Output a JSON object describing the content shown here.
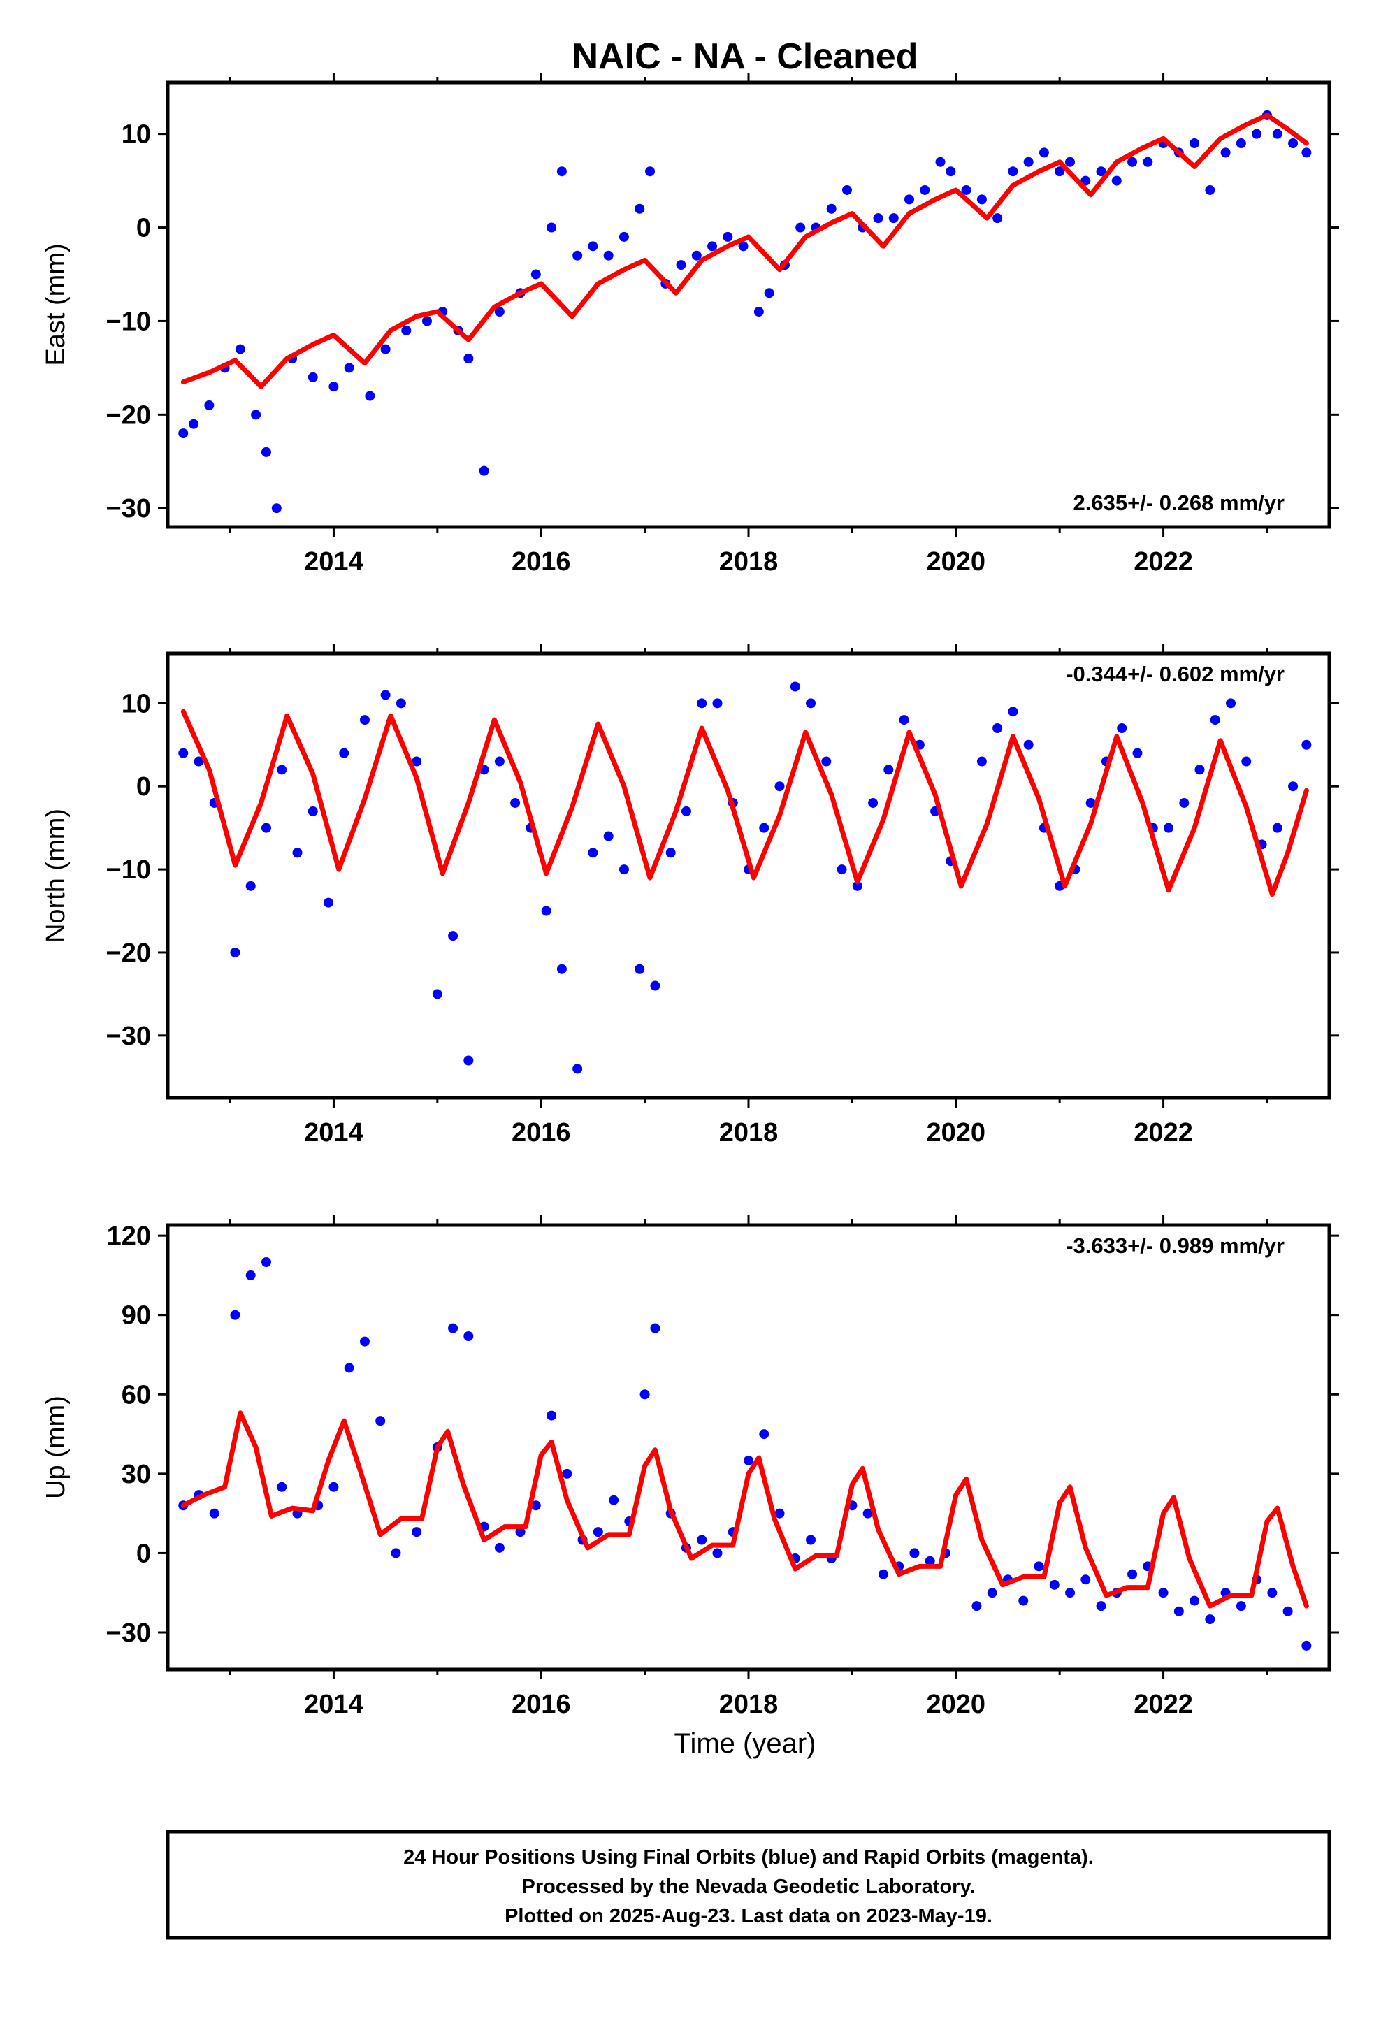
{
  "chart_data": {
    "type": "scatter",
    "title": "NAIC  - NA - Cleaned",
    "xlabel": "Time (year)",
    "xlim": [
      2012.4,
      2023.6
    ],
    "x_ticks": [
      2014,
      2016,
      2018,
      2020,
      2022
    ],
    "colors": {
      "points": "#0000ff",
      "model": "#ff0000",
      "frame": "#000000"
    },
    "panels": [
      {
        "id": "east",
        "ylabel": "East (mm)",
        "ylim": [
          -32,
          15.5
        ],
        "y_ticks": [
          10,
          0,
          -10,
          -20,
          -30
        ],
        "rate_text": "2.635+/- 0.268 mm/yr",
        "rate_position": "bottom-right",
        "observations": {
          "name": "daily positions",
          "x": [
            2012.55,
            2012.65,
            2012.8,
            2012.95,
            2013.1,
            2013.25,
            2013.35,
            2013.45,
            2013.6,
            2013.8,
            2014.0,
            2014.15,
            2014.35,
            2014.5,
            2014.7,
            2014.9,
            2015.05,
            2015.2,
            2015.3,
            2015.45,
            2015.6,
            2015.8,
            2015.95,
            2016.1,
            2016.2,
            2016.35,
            2016.5,
            2016.65,
            2016.8,
            2016.95,
            2017.05,
            2017.2,
            2017.35,
            2017.5,
            2017.65,
            2017.8,
            2017.95,
            2018.1,
            2018.2,
            2018.35,
            2018.5,
            2018.65,
            2018.8,
            2018.95,
            2019.1,
            2019.25,
            2019.4,
            2019.55,
            2019.7,
            2019.85,
            2019.95,
            2020.1,
            2020.25,
            2020.4,
            2020.55,
            2020.7,
            2020.85,
            2021.0,
            2021.1,
            2021.25,
            2021.4,
            2021.55,
            2021.7,
            2021.85,
            2022.0,
            2022.15,
            2022.3,
            2022.45,
            2022.6,
            2022.75,
            2022.9,
            2023.0,
            2023.1,
            2023.25,
            2023.38
          ],
          "y": [
            -22,
            -21,
            -19,
            -15,
            -13,
            -20,
            -24,
            -30,
            -14,
            -16,
            -17,
            -15,
            -18,
            -13,
            -11,
            -10,
            -9,
            -11,
            -14,
            -26,
            -9,
            -7,
            -5,
            0,
            6,
            -3,
            -2,
            -3,
            -1,
            2,
            6,
            -6,
            -4,
            -3,
            -2,
            -1,
            -2,
            -9,
            -7,
            -4,
            0,
            0,
            2,
            4,
            0,
            1,
            1,
            3,
            4,
            7,
            6,
            4,
            3,
            1,
            6,
            7,
            8,
            6,
            7,
            5,
            6,
            5,
            7,
            7,
            9,
            8,
            9,
            4,
            8,
            9,
            10,
            12,
            10,
            9,
            8
          ]
        },
        "model": {
          "name": "fit",
          "x": [
            2012.55,
            2012.8,
            2013.05,
            2013.3,
            2013.55,
            2013.8,
            2014.0,
            2014.3,
            2014.55,
            2014.8,
            2015.0,
            2015.3,
            2015.55,
            2015.8,
            2016.0,
            2016.3,
            2016.55,
            2016.8,
            2017.0,
            2017.3,
            2017.55,
            2017.8,
            2018.0,
            2018.3,
            2018.55,
            2018.8,
            2019.0,
            2019.3,
            2019.55,
            2019.8,
            2020.0,
            2020.3,
            2020.55,
            2020.8,
            2021.0,
            2021.3,
            2021.55,
            2021.8,
            2022.0,
            2022.3,
            2022.55,
            2022.8,
            2023.0,
            2023.2,
            2023.38
          ],
          "y": [
            -16.5,
            -15.5,
            -14.2,
            -17.0,
            -14.0,
            -12.5,
            -11.5,
            -14.5,
            -11.0,
            -9.5,
            -9.0,
            -12.0,
            -8.5,
            -7.0,
            -6.0,
            -9.5,
            -6.0,
            -4.5,
            -3.5,
            -7.0,
            -3.5,
            -2.0,
            -1.0,
            -4.5,
            -1.0,
            0.5,
            1.5,
            -2.0,
            1.5,
            3.0,
            4.0,
            1.0,
            4.5,
            6.0,
            7.0,
            3.5,
            7.0,
            8.5,
            9.5,
            6.5,
            9.5,
            11.0,
            12.0,
            10.5,
            9.0
          ]
        }
      },
      {
        "id": "north",
        "ylabel": "North (mm)",
        "ylim": [
          -37.5,
          16
        ],
        "y_ticks": [
          10,
          0,
          -10,
          -20,
          -30
        ],
        "rate_text": "-0.344+/- 0.602 mm/yr",
        "rate_position": "top-right",
        "observations": {
          "name": "daily positions",
          "x": [
            2012.55,
            2012.7,
            2012.85,
            2013.05,
            2013.2,
            2013.35,
            2013.5,
            2013.65,
            2013.8,
            2013.95,
            2014.1,
            2014.3,
            2014.5,
            2014.65,
            2014.8,
            2015.0,
            2015.15,
            2015.3,
            2015.45,
            2015.6,
            2015.75,
            2015.9,
            2016.05,
            2016.2,
            2016.35,
            2016.5,
            2016.65,
            2016.8,
            2016.95,
            2017.1,
            2017.25,
            2017.4,
            2017.55,
            2017.7,
            2017.85,
            2018.0,
            2018.15,
            2018.3,
            2018.45,
            2018.6,
            2018.75,
            2018.9,
            2019.05,
            2019.2,
            2019.35,
            2019.5,
            2019.65,
            2019.8,
            2019.95,
            2020.25,
            2020.4,
            2020.55,
            2020.7,
            2020.85,
            2021.0,
            2021.15,
            2021.3,
            2021.45,
            2021.6,
            2021.75,
            2021.9,
            2022.05,
            2022.2,
            2022.35,
            2022.5,
            2022.65,
            2022.8,
            2022.95,
            2023.1,
            2023.25,
            2023.38
          ],
          "y": [
            4,
            3,
            -2,
            -20,
            -12,
            -5,
            2,
            -8,
            -3,
            -14,
            4,
            8,
            11,
            10,
            3,
            -25,
            -18,
            -33,
            2,
            3,
            -2,
            -5,
            -15,
            -22,
            -34,
            -8,
            -6,
            -10,
            -22,
            -24,
            -8,
            -3,
            10,
            10,
            -2,
            -10,
            -5,
            0,
            12,
            10,
            3,
            -10,
            -12,
            -2,
            2,
            8,
            5,
            -3,
            -9,
            3,
            7,
            9,
            5,
            -5,
            -12,
            -10,
            -2,
            3,
            7,
            4,
            -5,
            -5,
            -2,
            2,
            8,
            10,
            3,
            -7,
            -5,
            0,
            5
          ]
        },
        "model": {
          "name": "fit",
          "x": [
            2012.55,
            2012.8,
            2013.05,
            2013.3,
            2013.55,
            2013.8,
            2014.05,
            2014.3,
            2014.55,
            2014.8,
            2015.05,
            2015.3,
            2015.55,
            2015.8,
            2016.05,
            2016.3,
            2016.55,
            2016.8,
            2017.05,
            2017.3,
            2017.55,
            2017.8,
            2018.05,
            2018.3,
            2018.55,
            2018.8,
            2019.05,
            2019.3,
            2019.55,
            2019.8,
            2020.05,
            2020.3,
            2020.55,
            2020.8,
            2021.05,
            2021.3,
            2021.55,
            2021.8,
            2022.05,
            2022.3,
            2022.55,
            2022.8,
            2023.05,
            2023.2,
            2023.38
          ],
          "y": [
            9.0,
            2.0,
            -9.5,
            -2.0,
            8.5,
            1.5,
            -10.0,
            -1.5,
            8.5,
            1.0,
            -10.5,
            -2.0,
            8.0,
            0.5,
            -10.5,
            -2.5,
            7.5,
            0.0,
            -11.0,
            -3.0,
            7.0,
            -0.5,
            -11.0,
            -3.5,
            6.5,
            -1.0,
            -11.5,
            -4.0,
            6.5,
            -1.0,
            -12.0,
            -4.5,
            6.0,
            -1.5,
            -12.0,
            -4.5,
            6.0,
            -2.0,
            -12.5,
            -5.0,
            5.5,
            -2.5,
            -13.0,
            -8.0,
            -0.5
          ]
        }
      },
      {
        "id": "up",
        "ylabel": "Up (mm)",
        "ylim": [
          -44,
          124
        ],
        "y_ticks": [
          120,
          90,
          60,
          30,
          0,
          -30
        ],
        "rate_text": "-3.633+/- 0.989 mm/yr",
        "rate_position": "top-right",
        "observations": {
          "name": "daily positions",
          "x": [
            2012.55,
            2012.7,
            2012.85,
            2013.05,
            2013.2,
            2013.35,
            2013.5,
            2013.65,
            2013.85,
            2014.0,
            2014.15,
            2014.3,
            2014.45,
            2014.6,
            2014.8,
            2015.0,
            2015.15,
            2015.3,
            2015.45,
            2015.6,
            2015.8,
            2015.95,
            2016.1,
            2016.25,
            2016.4,
            2016.55,
            2016.7,
            2016.85,
            2017.0,
            2017.1,
            2017.25,
            2017.4,
            2017.55,
            2017.7,
            2017.85,
            2018.0,
            2018.15,
            2018.3,
            2018.45,
            2018.6,
            2018.8,
            2019.0,
            2019.15,
            2019.3,
            2019.45,
            2019.6,
            2019.75,
            2019.9,
            2020.2,
            2020.35,
            2020.5,
            2020.65,
            2020.8,
            2020.95,
            2021.1,
            2021.25,
            2021.4,
            2021.55,
            2021.7,
            2021.85,
            2022.0,
            2022.15,
            2022.3,
            2022.45,
            2022.6,
            2022.75,
            2022.9,
            2023.05,
            2023.2,
            2023.38
          ],
          "y": [
            18,
            22,
            15,
            90,
            105,
            110,
            25,
            15,
            18,
            25,
            70,
            80,
            50,
            0,
            8,
            40,
            85,
            82,
            10,
            2,
            8,
            18,
            52,
            30,
            5,
            8,
            20,
            12,
            60,
            85,
            15,
            2,
            5,
            0,
            8,
            35,
            45,
            15,
            -2,
            5,
            -2,
            18,
            15,
            -8,
            -5,
            0,
            -3,
            0,
            -20,
            -15,
            -10,
            -18,
            -5,
            -12,
            -15,
            -10,
            -20,
            -15,
            -8,
            -5,
            -15,
            -22,
            -18,
            -25,
            -15,
            -20,
            -10,
            -15,
            -22,
            -35
          ]
        },
        "model": {
          "name": "fit",
          "x": [
            2012.55,
            2012.75,
            2012.95,
            2013.1,
            2013.25,
            2013.4,
            2013.6,
            2013.8,
            2013.95,
            2014.1,
            2014.25,
            2014.45,
            2014.65,
            2014.85,
            2015.0,
            2015.1,
            2015.25,
            2015.45,
            2015.65,
            2015.85,
            2016.0,
            2016.1,
            2016.25,
            2016.45,
            2016.65,
            2016.85,
            2017.0,
            2017.1,
            2017.25,
            2017.45,
            2017.65,
            2017.85,
            2018.0,
            2018.1,
            2018.25,
            2018.45,
            2018.65,
            2018.85,
            2019.0,
            2019.1,
            2019.25,
            2019.45,
            2019.65,
            2019.85,
            2020.0,
            2020.1,
            2020.25,
            2020.45,
            2020.65,
            2020.85,
            2021.0,
            2021.1,
            2021.25,
            2021.45,
            2021.65,
            2021.85,
            2022.0,
            2022.1,
            2022.25,
            2022.45,
            2022.65,
            2022.85,
            2023.0,
            2023.1,
            2023.25,
            2023.38
          ],
          "y": [
            18,
            22,
            25,
            53,
            40,
            14,
            17,
            16,
            35,
            50,
            32,
            7,
            13,
            13,
            40,
            46,
            26,
            5,
            10,
            10,
            37,
            42,
            20,
            2,
            7,
            7,
            33,
            39,
            16,
            -2,
            3,
            3,
            30,
            36,
            13,
            -6,
            -1,
            -1,
            26,
            32,
            9,
            -8,
            -5,
            -5,
            22,
            28,
            5,
            -12,
            -9,
            -9,
            19,
            25,
            2,
            -16,
            -13,
            -13,
            15,
            21,
            -2,
            -20,
            -16,
            -16,
            12,
            17,
            -5,
            -20
          ]
        }
      }
    ]
  },
  "footer": {
    "line1": "24 Hour Positions Using Final Orbits (blue) and Rapid Orbits (magenta).",
    "line2": "Processed by the Nevada Geodetic Laboratory.",
    "line3": "Plotted on 2025-Aug-23. Last data on 2023-May-19."
  }
}
